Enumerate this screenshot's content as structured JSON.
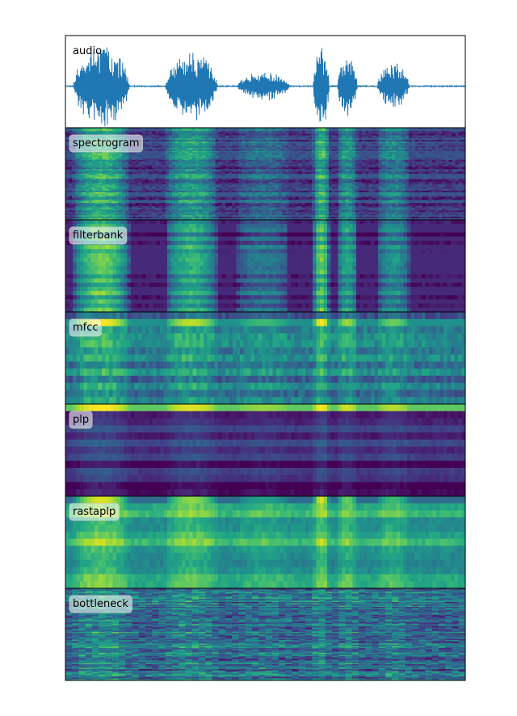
{
  "chart_data": {
    "type": "heatmap",
    "panel_labels": [
      "audio",
      "spectrogram",
      "filterbank",
      "mfcc",
      "plp",
      "rastaplp",
      "bottleneck"
    ],
    "panels": [
      {
        "name": "audio",
        "kind": "waveform",
        "color": "#1f77b4"
      },
      {
        "name": "spectrogram",
        "kind": "heatmap",
        "colormap": "viridis"
      },
      {
        "name": "filterbank",
        "kind": "heatmap",
        "colormap": "viridis"
      },
      {
        "name": "mfcc",
        "kind": "heatmap",
        "colormap": "viridis"
      },
      {
        "name": "plp",
        "kind": "heatmap",
        "colormap": "viridis"
      },
      {
        "name": "rastaplp",
        "kind": "heatmap",
        "colormap": "viridis"
      },
      {
        "name": "bottleneck",
        "kind": "heatmap",
        "colormap": "viridis"
      }
    ],
    "x_axis_ticks": false,
    "y_axis_ticks": false,
    "grid": false,
    "label_placement": "top-left"
  }
}
